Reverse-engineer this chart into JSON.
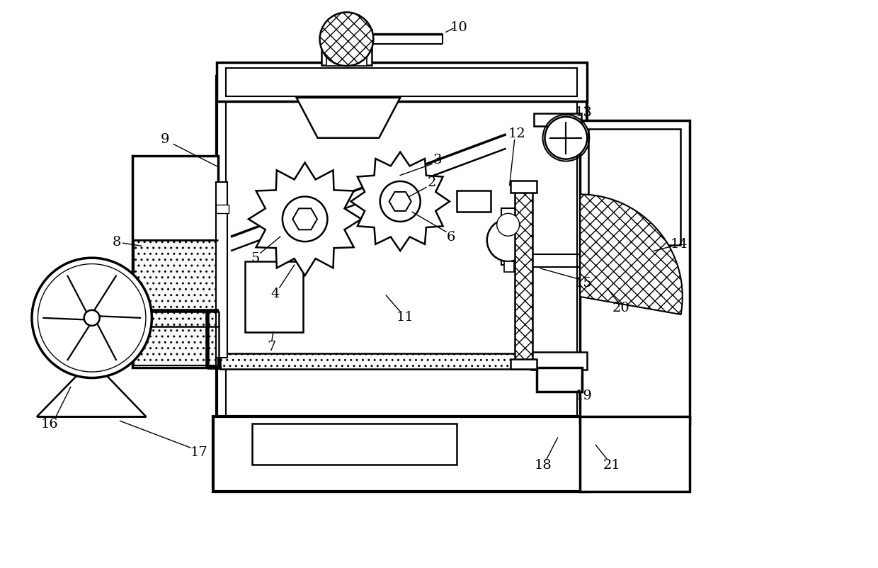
{
  "bg_color": "#ffffff",
  "lw": 1.8,
  "fig_w": 12.4,
  "fig_h": 8.03,
  "line_color": "#000000"
}
